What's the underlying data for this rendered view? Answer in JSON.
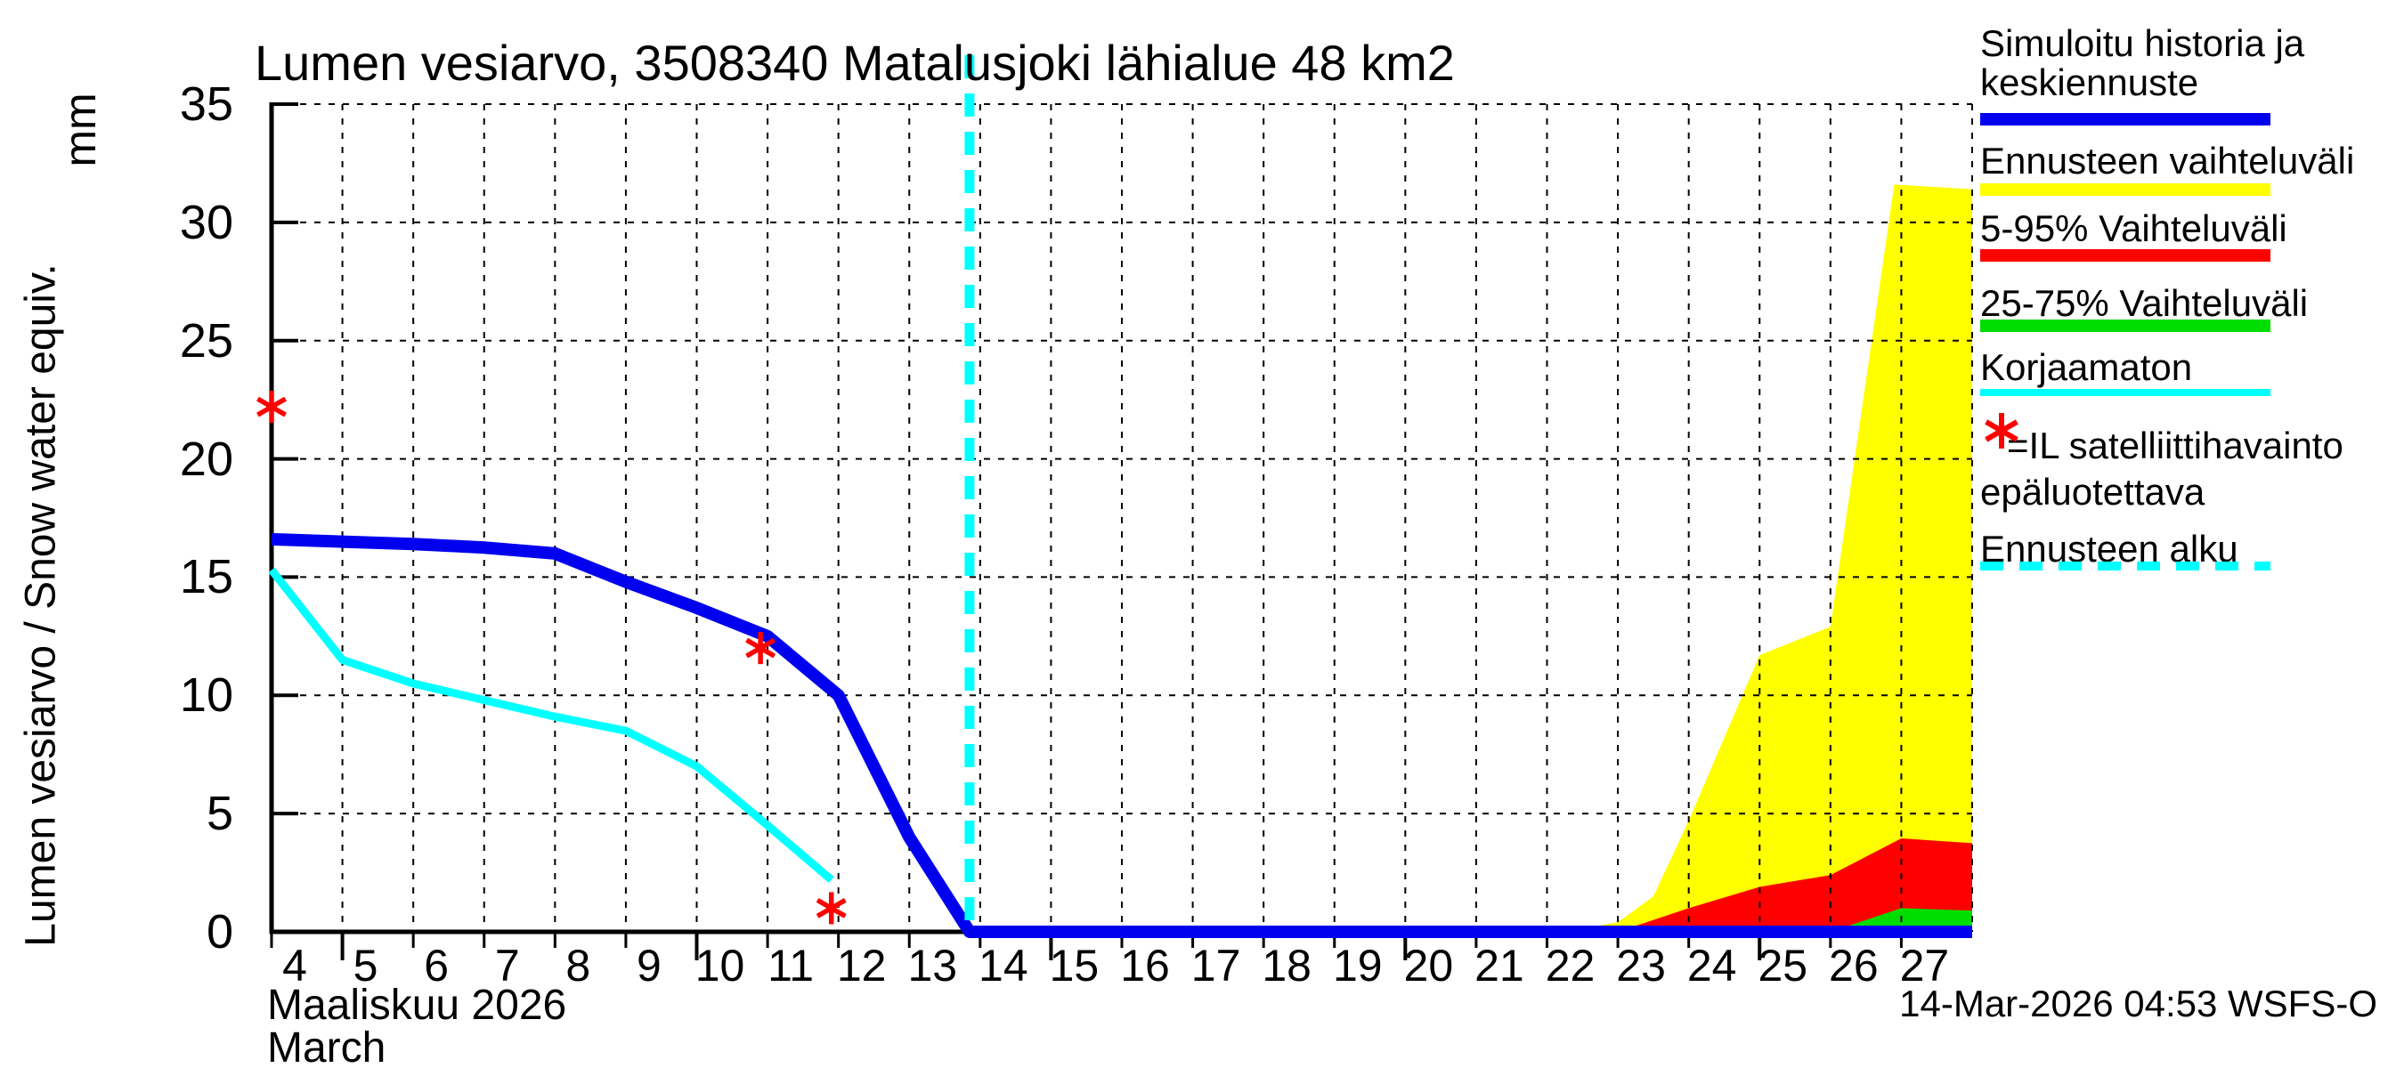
{
  "title": "Lumen vesiarvo, 3508340 Matalusjoki lähialue 48 km2",
  "y_axis": {
    "label": "Lumen vesiarvo / Snow water equiv.",
    "unit": "mm"
  },
  "x_axis": {
    "month_fi": "Maaliskuu 2026",
    "month_en": "March"
  },
  "footer": {
    "timestamp": "14-Mar-2026 04:53 WSFS-O"
  },
  "legend": {
    "items": [
      {
        "lines": [
          "Simuloitu historia ja",
          "keskiennuste"
        ],
        "sample": "line",
        "color": "#0000ee"
      },
      {
        "lines": [
          "Ennusteen vaihteluväli"
        ],
        "sample": "line",
        "color": "#ffff00"
      },
      {
        "lines": [
          "5-95% Vaihteluväli"
        ],
        "sample": "line",
        "color": "#ff0000"
      },
      {
        "lines": [
          "25-75% Vaihteluväli"
        ],
        "sample": "line",
        "color": "#00dd00"
      },
      {
        "lines": [
          "Korjaamaton"
        ],
        "sample": "line",
        "color": "#00ffff"
      },
      {
        "lines": [
          "=IL satelliittihavainto",
          "epäluotettava"
        ],
        "sample": "marker",
        "symbol": "asterisk",
        "color": "#ff0000"
      },
      {
        "lines": [
          "Ennusteen alku"
        ],
        "sample": "dashed",
        "color": "#00ffff"
      }
    ]
  },
  "chart_data": {
    "type": "area",
    "title": "Lumen vesiarvo, 3508340 Matalusjoki lähialue 48 km2",
    "xlabel": "Maaliskuu 2026 / March, day of month",
    "ylabel": "Lumen vesiarvo / Snow water equiv. (mm)",
    "x": {
      "min": 4,
      "max": 28,
      "ticks": [
        4,
        5,
        6,
        7,
        8,
        9,
        10,
        11,
        12,
        13,
        14,
        15,
        16,
        17,
        18,
        19,
        20,
        21,
        22,
        23,
        24,
        25,
        26,
        27
      ],
      "major_ticks": [
        5,
        10,
        15,
        20,
        25
      ]
    },
    "y": {
      "min": 0,
      "max": 35,
      "ticks": [
        0,
        5,
        10,
        15,
        20,
        25,
        30,
        35
      ]
    },
    "grid": "dotted, vertical every day, horizontal every 5 mm",
    "forecast_start": {
      "label": "Ennusteen alku",
      "day": 13.85,
      "color": "#00ffff",
      "style": "dashed-vertical"
    },
    "series": [
      {
        "name": "Ennusteen vaihteluväli",
        "type": "band",
        "color": "#ffff00",
        "points": [
          [
            22.2,
            0
          ],
          [
            23,
            0.4
          ],
          [
            23.5,
            1.5
          ],
          [
            24,
            4.7
          ],
          [
            25,
            11.7
          ],
          [
            26,
            12.9
          ],
          [
            26.9,
            31.6
          ],
          [
            28,
            31.4
          ]
        ]
      },
      {
        "name": "5-95% Vaihteluväli",
        "type": "band",
        "color": "#ff0000",
        "points": [
          [
            23,
            0
          ],
          [
            24,
            1.0
          ],
          [
            25,
            1.9
          ],
          [
            26,
            2.4
          ],
          [
            27,
            3.95
          ],
          [
            28,
            3.75
          ]
        ]
      },
      {
        "name": "25-75% Vaihteluväli",
        "type": "band",
        "color": "#00dd00",
        "points": [
          [
            26,
            0
          ],
          [
            27,
            1.0
          ],
          [
            28,
            0.9
          ]
        ]
      },
      {
        "name": "Korjaamaton",
        "type": "line",
        "color": "#00ffff",
        "width": 9,
        "points": [
          [
            4,
            15.3
          ],
          [
            5,
            11.5
          ],
          [
            6,
            10.5
          ],
          [
            7,
            9.8
          ],
          [
            8,
            9.1
          ],
          [
            9,
            8.5
          ],
          [
            10,
            7.0
          ],
          [
            11,
            4.5
          ],
          [
            11.9,
            2.2
          ]
        ]
      },
      {
        "name": "Simuloitu historia ja keskiennuste",
        "type": "line",
        "color": "#0000ee",
        "width": 14,
        "points": [
          [
            4,
            16.6
          ],
          [
            5,
            16.5
          ],
          [
            6,
            16.4
          ],
          [
            7,
            16.25
          ],
          [
            8,
            16.0
          ],
          [
            9,
            14.8
          ],
          [
            10,
            13.7
          ],
          [
            11,
            12.5
          ],
          [
            12,
            10.0
          ],
          [
            13,
            4.0
          ],
          [
            13.85,
            0
          ],
          [
            28,
            0
          ]
        ]
      }
    ],
    "markers": {
      "name": "IL satelliittihavainto epäluotettava",
      "symbol": "asterisk",
      "color": "#ff0000",
      "points": [
        [
          4,
          22.2
        ],
        [
          10.9,
          12.0
        ],
        [
          11.9,
          1.0
        ]
      ]
    }
  }
}
